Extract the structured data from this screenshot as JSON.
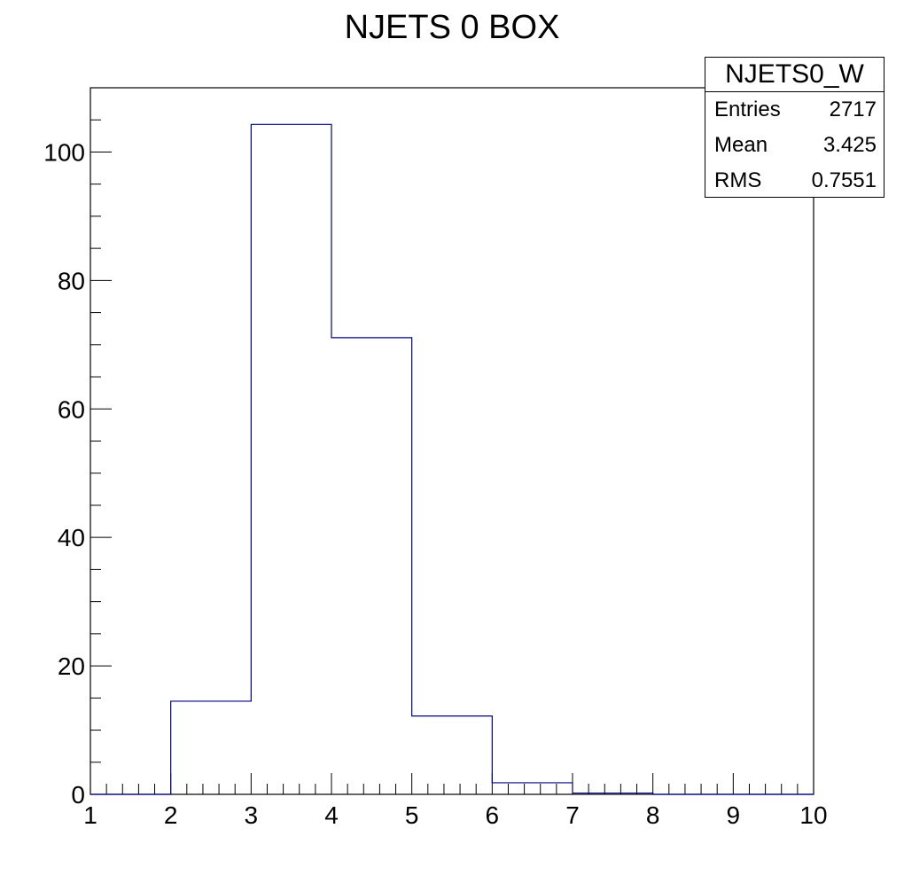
{
  "chart_data": {
    "type": "histogram",
    "title": "NJETS 0 BOX",
    "xlabel": "",
    "ylabel": "",
    "xlim": [
      1,
      10
    ],
    "ylim": [
      0,
      110
    ],
    "bin_edges": [
      1,
      2,
      3,
      4,
      5,
      6,
      7,
      8,
      9,
      10
    ],
    "values": [
      0,
      14.5,
      104.3,
      71.1,
      12.2,
      1.8,
      0.2,
      0,
      0
    ],
    "x_ticks": [
      "1",
      "2",
      "3",
      "4",
      "5",
      "6",
      "7",
      "8",
      "9",
      "10"
    ],
    "y_ticks": [
      "0",
      "20",
      "40",
      "60",
      "80",
      "100"
    ],
    "y_tick_values": [
      0,
      20,
      40,
      60,
      80,
      100
    ],
    "line_color": "#000080",
    "grid": false,
    "legend_position": "top-right",
    "stats": {
      "name": "NJETS0_W",
      "rows": [
        {
          "label": "Entries",
          "value": "2717"
        },
        {
          "label": "Mean",
          "value": "3.425"
        },
        {
          "label": "RMS",
          "value": "0.7551"
        }
      ]
    }
  }
}
